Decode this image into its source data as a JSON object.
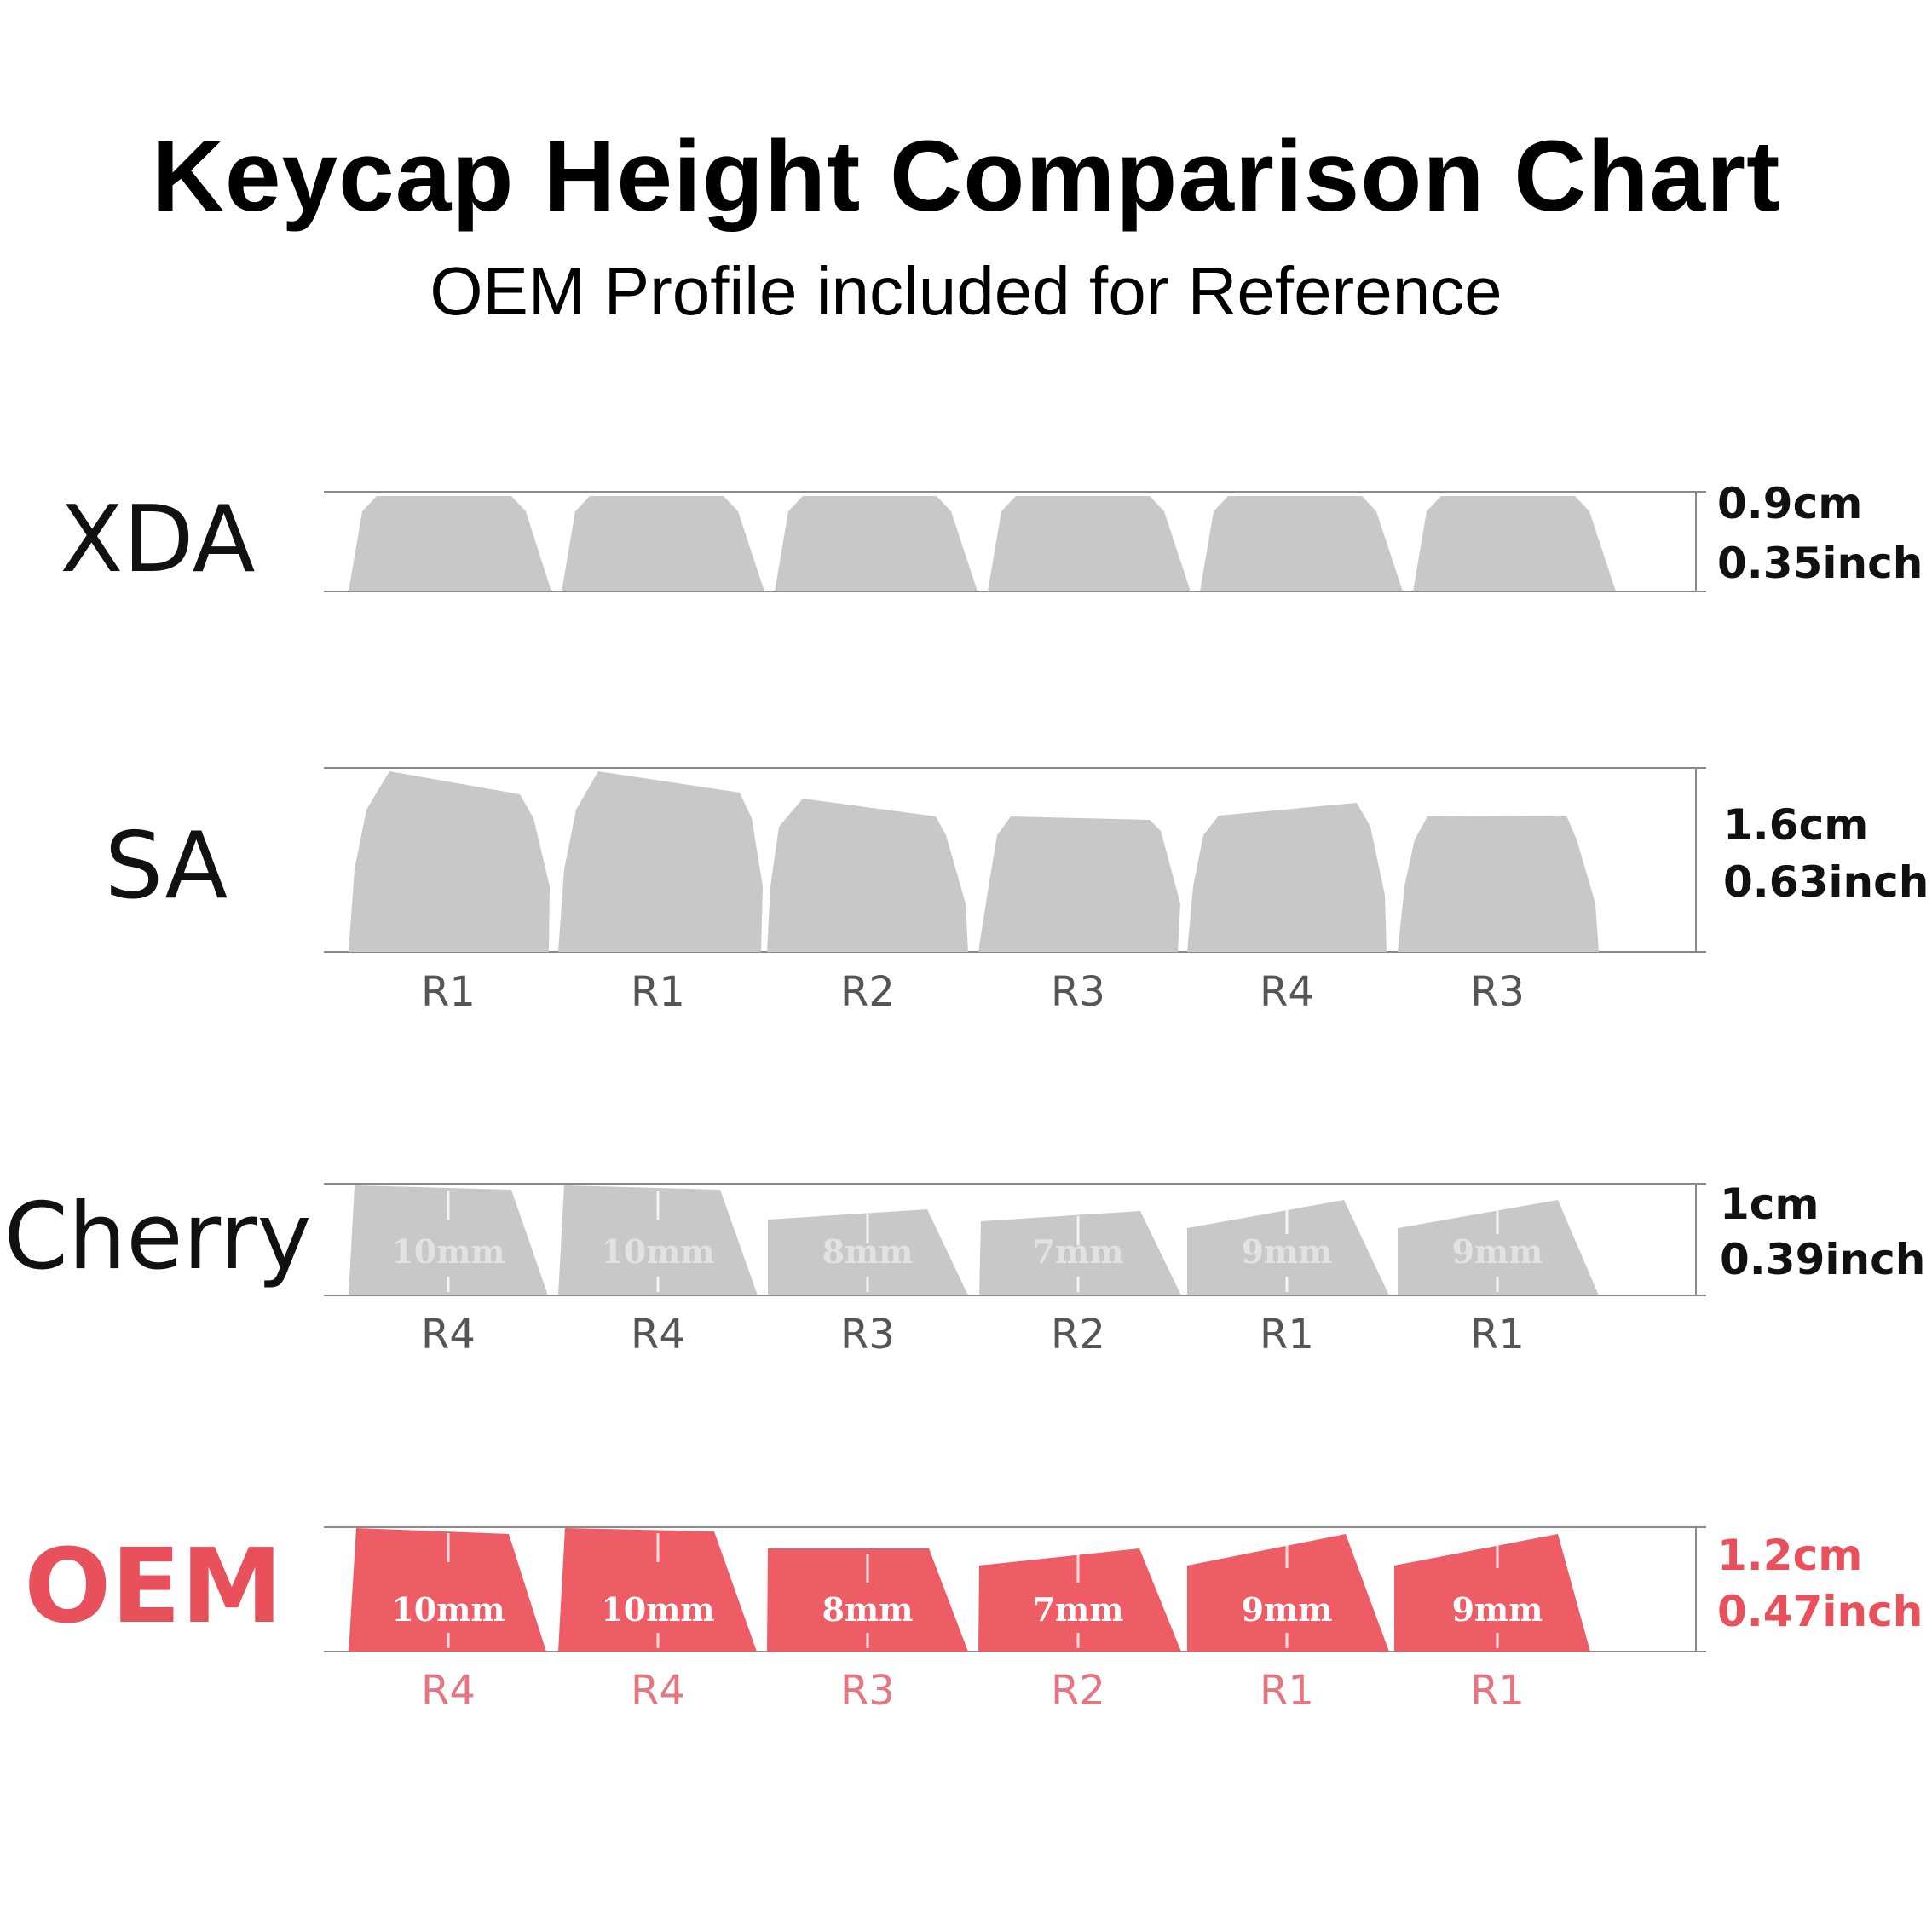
{
  "title": "Keycap Height Comparison Chart",
  "subtitle": "OEM Profile included for Reference",
  "colors": {
    "gray_key": "#c8c8c8",
    "oem_key": "#ee5c66",
    "oem_text": "#e8505c",
    "oem_row_text": "#e37680",
    "line": "#8a8a8a",
    "dark_text": "#111111",
    "row_text": "#555555"
  },
  "profiles": [
    {
      "name": "XDA",
      "height_cm": "0.9cm",
      "height_inch": "0.35inch",
      "highlight": false,
      "keys": [
        {
          "row": "",
          "mm": ""
        },
        {
          "row": "",
          "mm": ""
        },
        {
          "row": "",
          "mm": ""
        },
        {
          "row": "",
          "mm": ""
        },
        {
          "row": "",
          "mm": ""
        },
        {
          "row": "",
          "mm": ""
        }
      ]
    },
    {
      "name": "SA",
      "height_cm": "1.6cm",
      "height_inch": "0.63inch",
      "highlight": false,
      "keys": [
        {
          "row": "R1",
          "mm": ""
        },
        {
          "row": "R1",
          "mm": ""
        },
        {
          "row": "R2",
          "mm": ""
        },
        {
          "row": "R3",
          "mm": ""
        },
        {
          "row": "R4",
          "mm": ""
        },
        {
          "row": "R3",
          "mm": ""
        }
      ]
    },
    {
      "name": "Cherry",
      "height_cm": "1cm",
      "height_inch": "0.39inch",
      "highlight": false,
      "keys": [
        {
          "row": "R4",
          "mm": "10mm"
        },
        {
          "row": "R4",
          "mm": "10mm"
        },
        {
          "row": "R3",
          "mm": "8mm"
        },
        {
          "row": "R2",
          "mm": "7mm"
        },
        {
          "row": "R1",
          "mm": "9mm"
        },
        {
          "row": "R1",
          "mm": "9mm"
        }
      ]
    },
    {
      "name": "OEM",
      "height_cm": "1.2cm",
      "height_inch": "0.47inch",
      "highlight": true,
      "keys": [
        {
          "row": "R4",
          "mm": "10mm"
        },
        {
          "row": "R4",
          "mm": "10mm"
        },
        {
          "row": "R3",
          "mm": "8mm"
        },
        {
          "row": "R2",
          "mm": "7mm"
        },
        {
          "row": "R1",
          "mm": "9mm"
        },
        {
          "row": "R1",
          "mm": "9mm"
        }
      ]
    }
  ]
}
